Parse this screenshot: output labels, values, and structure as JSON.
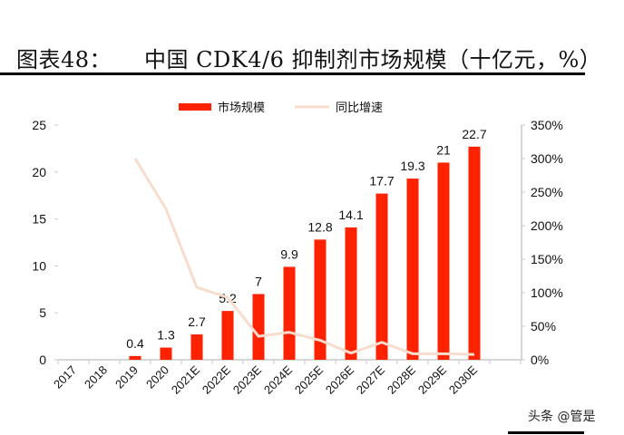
{
  "title": {
    "label": "图表48：",
    "text": "中国 CDK4/6 抑制剂市场规模（十亿元，%）"
  },
  "watermark": "头条 @管是",
  "chart_data": {
    "type": "bar+line",
    "categories": [
      "2017",
      "2018",
      "2019",
      "2020",
      "2021E",
      "2022E",
      "2023E",
      "2024E",
      "2025E",
      "2026E",
      "2027E",
      "2028E",
      "2029E",
      "2030E"
    ],
    "series": [
      {
        "name": "市场规模",
        "type": "bar",
        "axis": "left",
        "color": "#ff2200",
        "values": [
          null,
          null,
          0.4,
          1.3,
          2.7,
          5.2,
          7,
          9.9,
          12.8,
          14.1,
          17.7,
          19.3,
          21,
          22.7
        ],
        "labels": [
          "",
          "",
          "0.4",
          "1.3",
          "2.7",
          "5.2",
          "7",
          "9.9",
          "12.8",
          "14.1",
          "17.7",
          "19.3",
          "21",
          "22.7"
        ]
      },
      {
        "name": "同比增速",
        "type": "line",
        "axis": "right",
        "color": "#f8dccd",
        "values": [
          null,
          null,
          300,
          225,
          108,
          93,
          35,
          41,
          29,
          10,
          26,
          9,
          9,
          8
        ]
      }
    ],
    "y_left": {
      "range": [
        0,
        25
      ],
      "ticks": [
        "0",
        "5",
        "10",
        "15",
        "20",
        "25"
      ]
    },
    "y_right": {
      "range": [
        0,
        350
      ],
      "ticks": [
        "0%",
        "50%",
        "100%",
        "150%",
        "200%",
        "250%",
        "300%",
        "350%"
      ]
    },
    "legend_position": "top",
    "grid": false
  }
}
